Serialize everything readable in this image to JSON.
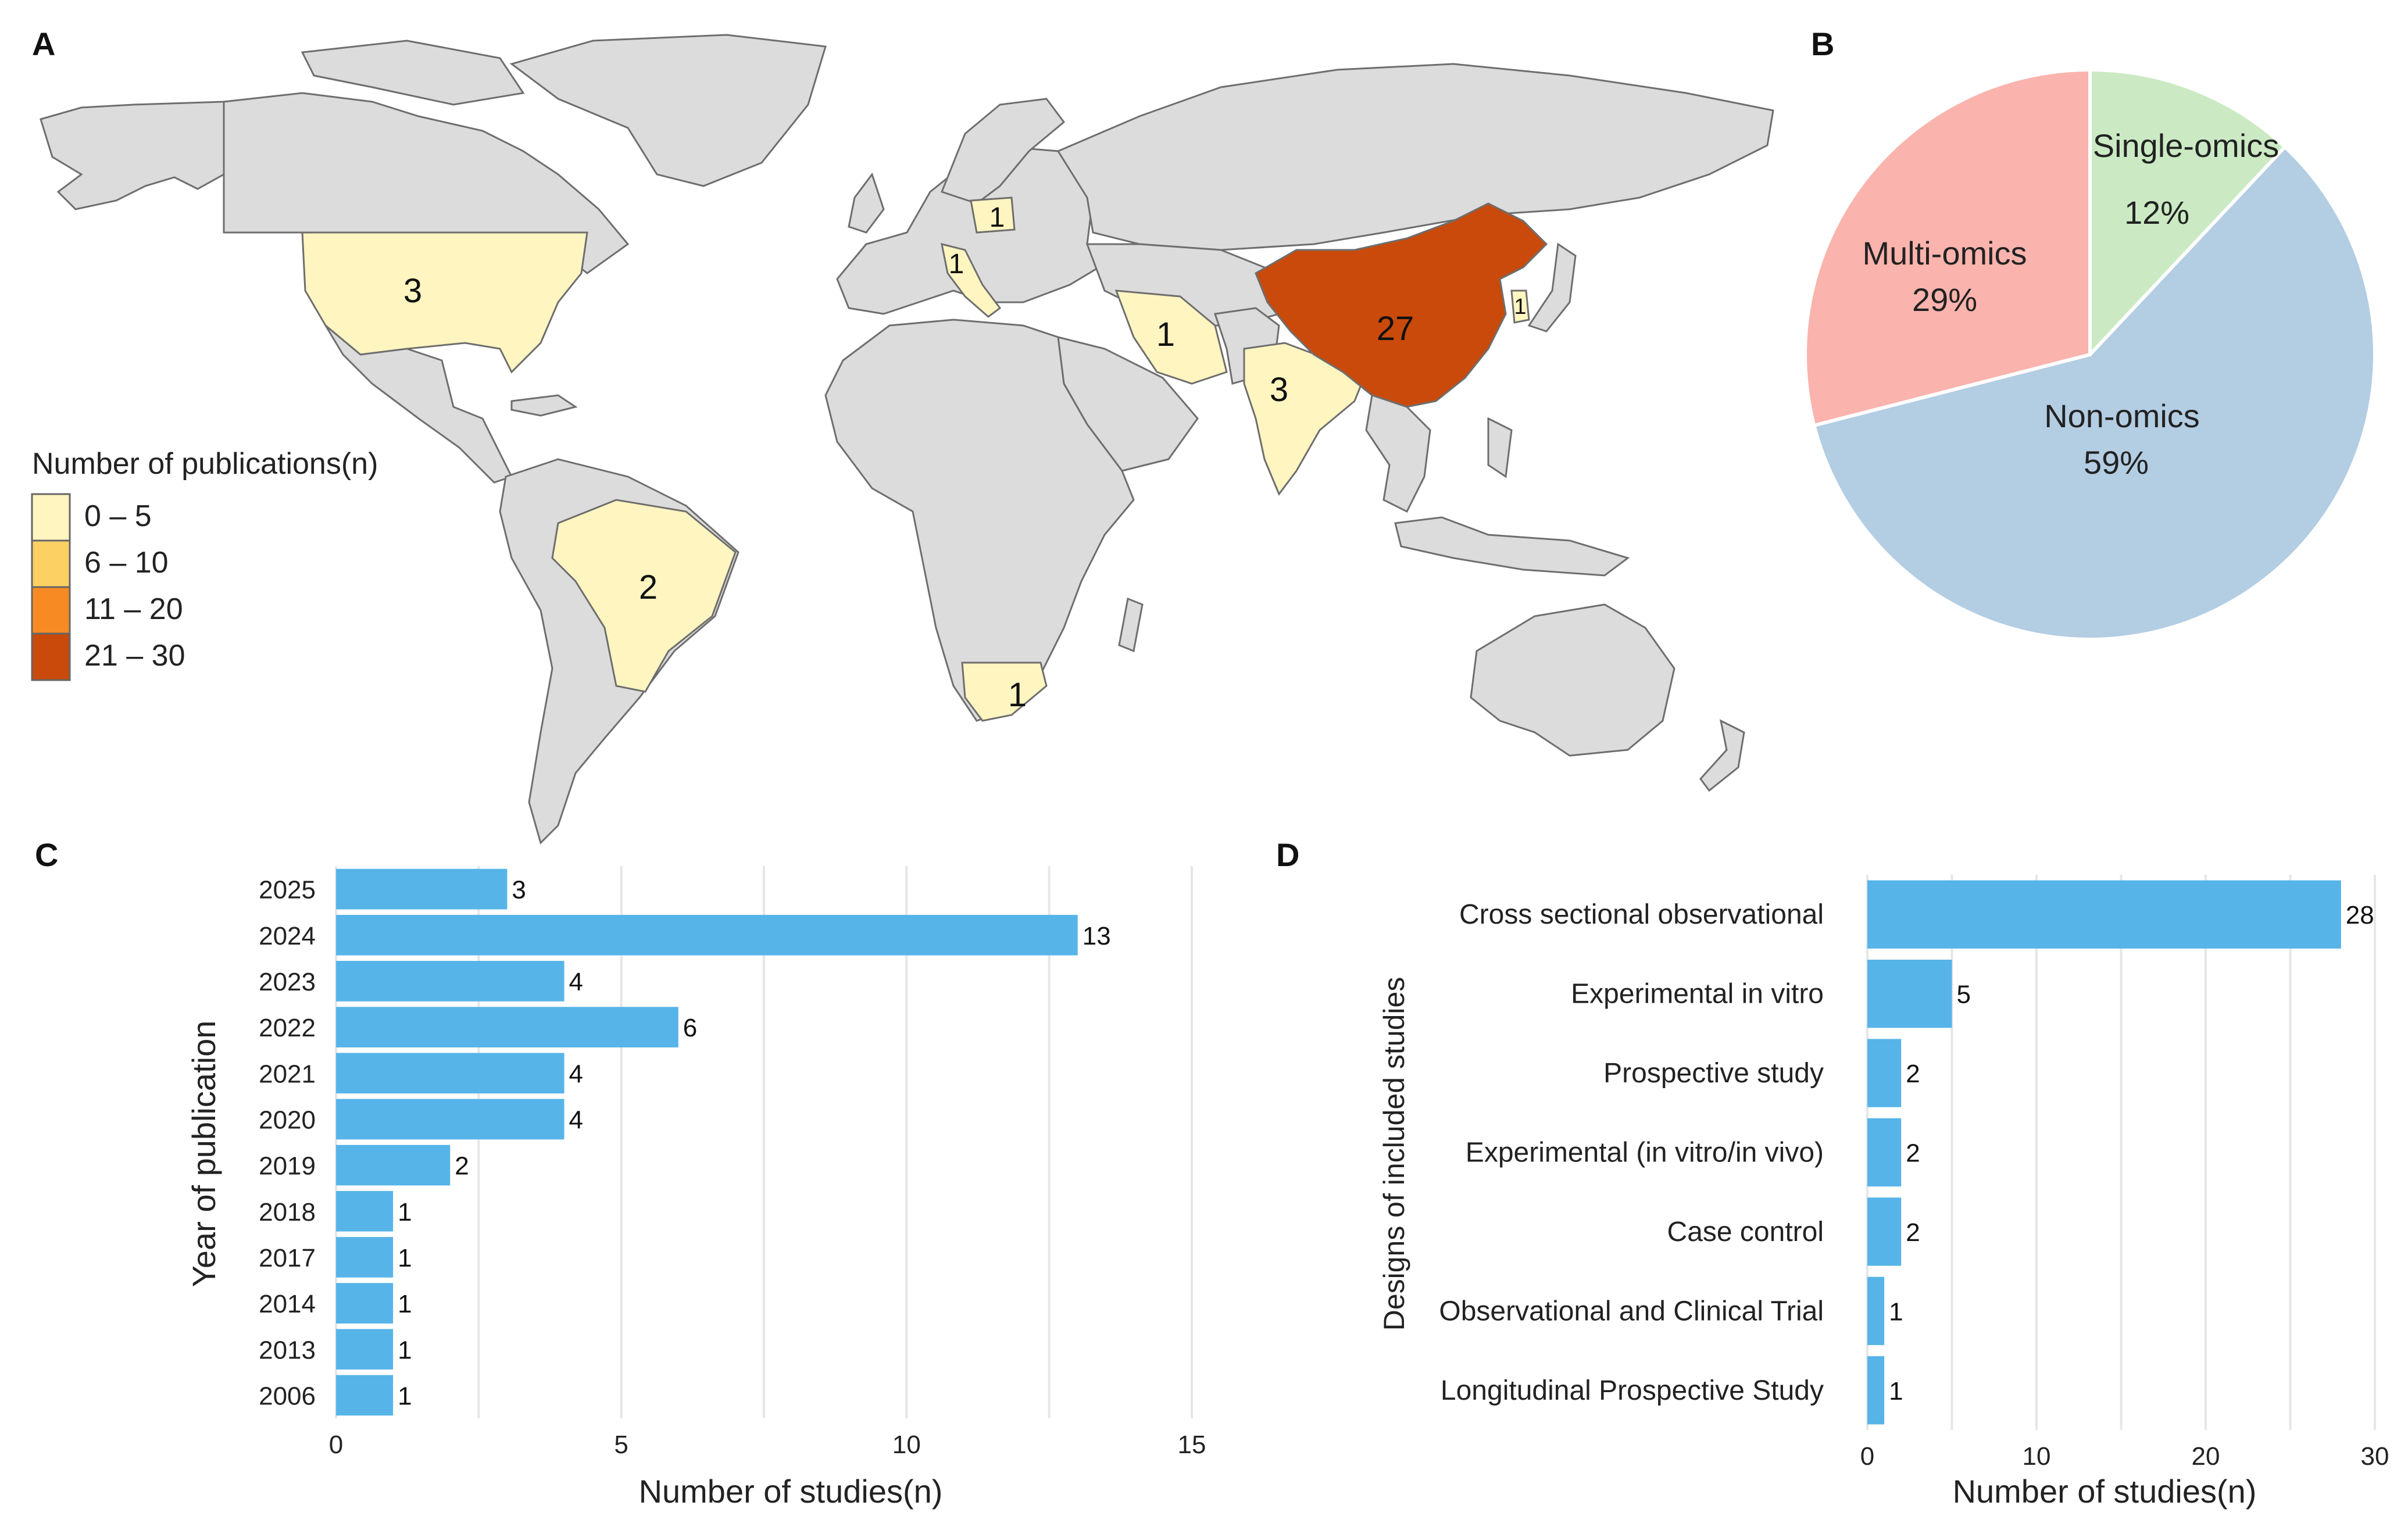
{
  "panels": {
    "a": "A",
    "b": "B",
    "c": "C",
    "d": "D"
  },
  "chart_data": [
    {
      "type": "map",
      "panel": "A",
      "legend_title": "Number of publications(n)",
      "legend": [
        {
          "label": "0 – 5",
          "color": "#fff5c0"
        },
        {
          "label": "6 – 10",
          "color": "#fdd063"
        },
        {
          "label": "11 – 20",
          "color": "#f88a23"
        },
        {
          "label": "21 – 30",
          "color": "#c94a0b"
        }
      ],
      "countries": [
        {
          "name": "China",
          "value": 27
        },
        {
          "name": "United States",
          "value": 3
        },
        {
          "name": "India",
          "value": 3
        },
        {
          "name": "Brazil",
          "value": 2
        },
        {
          "name": "Iran",
          "value": 1
        },
        {
          "name": "South Africa",
          "value": 1
        },
        {
          "name": "Poland",
          "value": 1
        },
        {
          "name": "Italy",
          "value": 1
        },
        {
          "name": "South Korea",
          "value": 1
        }
      ]
    },
    {
      "type": "pie",
      "panel": "B",
      "slices": [
        {
          "label": "Single-omics",
          "value": 12,
          "pct": "12%",
          "color": "#cbeac4"
        },
        {
          "label": "Non-omics",
          "value": 59,
          "pct": "59%",
          "color": "#b3cde3"
        },
        {
          "label": "Multi-omics",
          "value": 29,
          "pct": "29%",
          "color": "#fab3ad"
        }
      ]
    },
    {
      "type": "bar",
      "panel": "C",
      "orientation": "horizontal",
      "categories": [
        "2025",
        "2024",
        "2023",
        "2022",
        "2021",
        "2020",
        "2019",
        "2018",
        "2017",
        "2014",
        "2013",
        "2006"
      ],
      "values": [
        3,
        13,
        4,
        6,
        4,
        4,
        2,
        1,
        1,
        1,
        1,
        1
      ],
      "xlabel": "Number of studies(n)",
      "ylabel": "Year of publication",
      "xlim": [
        0,
        15
      ],
      "xticks": [
        0,
        5,
        10,
        15
      ],
      "color": "#56b4e9"
    },
    {
      "type": "bar",
      "panel": "D",
      "orientation": "horizontal",
      "categories": [
        "Cross sectional observational",
        "Experimental in vitro",
        "Prospective study",
        "Experimental (in vitro/in vivo)",
        "Case control",
        "Observational and Clinical Trial",
        "Longitudinal Prospective Study"
      ],
      "values": [
        28,
        5,
        2,
        2,
        2,
        1,
        1
      ],
      "xlabel": "Number of studies(n)",
      "ylabel": "Designs of included studies",
      "xlim": [
        0,
        30
      ],
      "xticks": [
        0,
        10,
        20,
        30
      ],
      "color": "#56b4e9"
    }
  ]
}
